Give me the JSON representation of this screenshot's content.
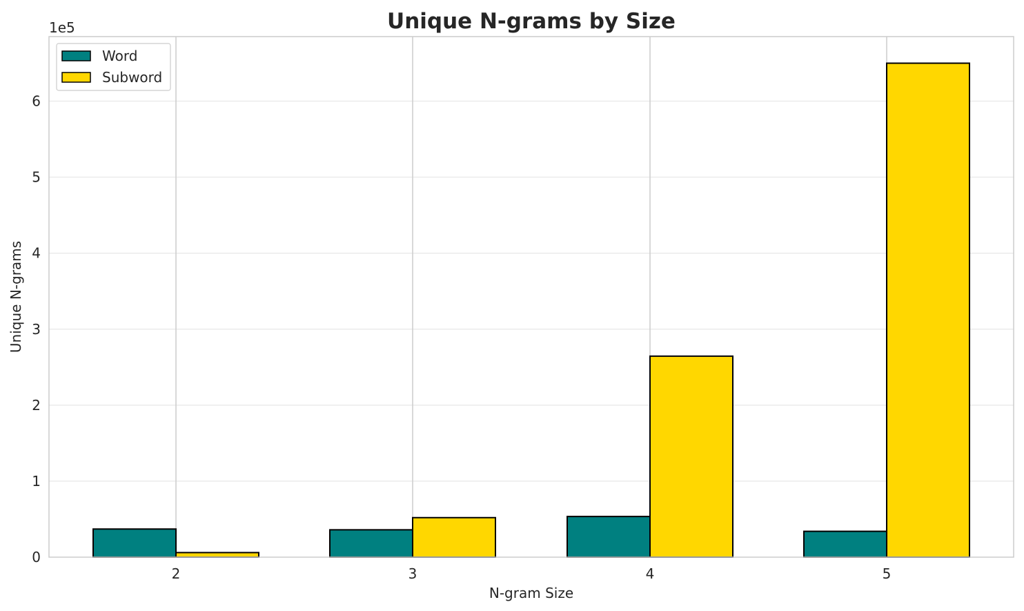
{
  "chart_data": {
    "type": "bar",
    "title": "Unique N-grams by Size",
    "xlabel": "N-gram Size",
    "ylabel": "Unique N-grams",
    "y_multiplier_label": "1e5",
    "categories": [
      "2",
      "3",
      "4",
      "5"
    ],
    "series": [
      {
        "name": "Word",
        "color": "#008080",
        "values": [
          37000,
          36000,
          53500,
          34000
        ]
      },
      {
        "name": "Subword",
        "color": "#FFD700",
        "values": [
          6000,
          52000,
          264500,
          650000
        ]
      }
    ],
    "ylim": [
      0,
      685000
    ],
    "yticks": [
      0,
      100000,
      200000,
      300000,
      400000,
      500000,
      600000
    ],
    "ytick_labels": [
      "0",
      "1",
      "2",
      "3",
      "4",
      "5",
      "6"
    ],
    "grid": true,
    "legend_position": "top-left"
  }
}
